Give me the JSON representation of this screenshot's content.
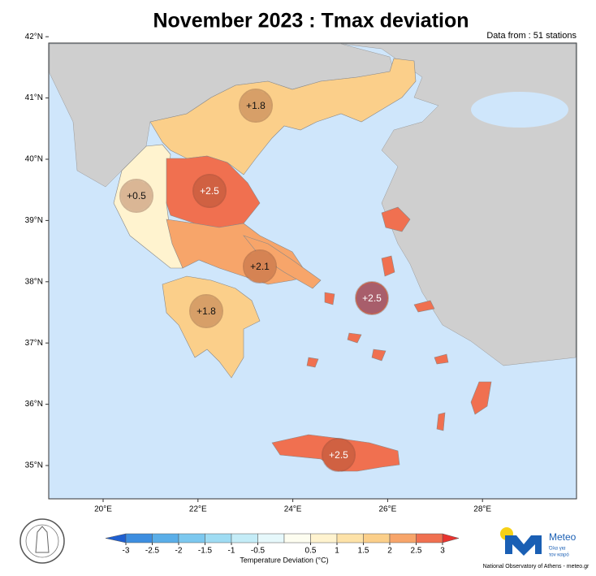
{
  "title": "November 2023 : Tmax deviation",
  "subtitle": "Data from : 51 stations",
  "lat_ticks": [
    {
      "value": 35,
      "label": "35°N"
    },
    {
      "value": 36,
      "label": "36°N"
    },
    {
      "value": 37,
      "label": "37°N"
    },
    {
      "value": 38,
      "label": "38°N"
    },
    {
      "value": 39,
      "label": "39°N"
    },
    {
      "value": 40,
      "label": "40°N"
    },
    {
      "value": 41,
      "label": "41°N"
    },
    {
      "value": 42,
      "label": "42°N"
    }
  ],
  "lon_ticks": [
    {
      "value": 20,
      "label": "20°E"
    },
    {
      "value": 22,
      "label": "22°E"
    },
    {
      "value": 24,
      "label": "24°E"
    },
    {
      "value": 26,
      "label": "26°E"
    },
    {
      "value": 28,
      "label": "28°E"
    }
  ],
  "markers": [
    {
      "label": "+1.8",
      "value": 1.8
    },
    {
      "label": "+0.5",
      "value": 0.5
    },
    {
      "label": "+2.5",
      "value": 2.5
    },
    {
      "label": "+2.1",
      "value": 2.1
    },
    {
      "label": "+2.5",
      "value": 2.5
    },
    {
      "label": "+1.8",
      "value": 1.8
    },
    {
      "label": "+2.5",
      "value": 2.5
    }
  ],
  "colorbar": {
    "label": "Temperature Deviation (°C)",
    "ticks": [
      -3,
      -2.5,
      -2,
      -1.5,
      -1,
      -0.5,
      0.5,
      1,
      1.5,
      2,
      2.5,
      3
    ],
    "colors": [
      "#3d8ee0",
      "#5aaee8",
      "#7cc8ef",
      "#9fdcf3",
      "#c4ecf7",
      "#e6f8fb",
      "#fdfdf0",
      "#fff3cf",
      "#fde2a8",
      "#fbcf8a",
      "#f7a56a",
      "#f07050"
    ],
    "under": "#1f5fd0",
    "over": "#e8332f"
  },
  "logo": {
    "name": "Meteo",
    "tagline_1": "Όλα για",
    "tagline_2": "τον καιρό",
    "footer": "National Observatory of Athens - meteo.gr"
  }
}
